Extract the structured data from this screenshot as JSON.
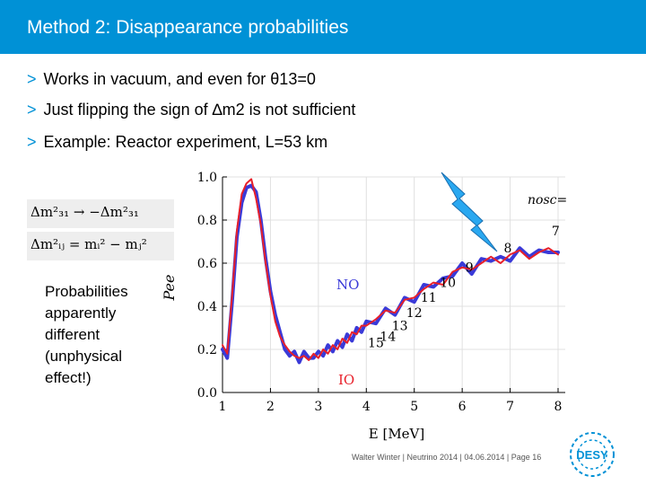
{
  "slide": {
    "title": "Method 2: Disappearance probabilities",
    "bullets": [
      {
        "marker": ">",
        "text": "Works in vacuum, and even for θ13=0"
      },
      {
        "marker": ">",
        "text": "Just flipping the sign of ∆m2 is not sufficient"
      },
      {
        "marker": ">",
        "text": "Example: Reactor experiment, L=53 km"
      }
    ],
    "equations": {
      "line1": "Δm²₃₁ → −Δm²₃₁",
      "line2": "Δm²ᵢⱼ = mᵢ² − mⱼ²"
    },
    "note": [
      "Probabilities",
      "apparently",
      "different",
      "(unphysical",
      "effect!)"
    ],
    "footer": "Walter Winter | Neutrino 2014 | 04.06.2014 | Page 16",
    "logo": "DESY"
  },
  "colors": {
    "accent": "#0091d6",
    "no_curve": "#e8202a",
    "io_curve": "#3a3ad8",
    "bolt": "#2aa8f0"
  },
  "chart_data": {
    "type": "line",
    "xlabel": "E [MeV]",
    "ylabel": "Pee",
    "x_ticks": [
      "1",
      "2",
      "3",
      "4",
      "5",
      "6",
      "7",
      "8"
    ],
    "y_ticks": [
      "0.0",
      "0.2",
      "0.4",
      "0.6",
      "0.8",
      "1.0"
    ],
    "xlim": [
      1,
      8
    ],
    "ylim": [
      0,
      1
    ],
    "series": [
      {
        "name": "NO",
        "color": "#e8202a",
        "x": [
          1.0,
          1.1,
          1.2,
          1.3,
          1.4,
          1.5,
          1.6,
          1.7,
          1.8,
          1.9,
          2.0,
          2.1,
          2.2,
          2.3,
          2.4,
          2.5,
          2.6,
          2.7,
          2.8,
          2.9,
          3.0,
          3.1,
          3.2,
          3.3,
          3.4,
          3.5,
          3.6,
          3.7,
          3.8,
          3.9,
          4.0,
          4.2,
          4.4,
          4.6,
          4.8,
          5.0,
          5.2,
          5.4,
          5.6,
          5.8,
          6.0,
          6.2,
          6.4,
          6.6,
          6.8,
          7.0,
          7.2,
          7.4,
          7.6,
          7.8,
          8.0
        ],
        "y": [
          0.22,
          0.18,
          0.45,
          0.75,
          0.92,
          0.97,
          0.99,
          0.9,
          0.78,
          0.6,
          0.45,
          0.33,
          0.26,
          0.22,
          0.19,
          0.17,
          0.16,
          0.17,
          0.15,
          0.18,
          0.16,
          0.2,
          0.18,
          0.22,
          0.2,
          0.25,
          0.23,
          0.28,
          0.27,
          0.31,
          0.31,
          0.34,
          0.38,
          0.37,
          0.43,
          0.44,
          0.48,
          0.51,
          0.5,
          0.56,
          0.58,
          0.57,
          0.6,
          0.63,
          0.6,
          0.64,
          0.66,
          0.62,
          0.65,
          0.67,
          0.64
        ]
      },
      {
        "name": "IO",
        "color": "#3a3ad8",
        "x": [
          1.0,
          1.1,
          1.2,
          1.3,
          1.4,
          1.5,
          1.6,
          1.7,
          1.8,
          1.9,
          2.0,
          2.1,
          2.2,
          2.3,
          2.4,
          2.5,
          2.6,
          2.7,
          2.8,
          2.9,
          3.0,
          3.1,
          3.2,
          3.3,
          3.4,
          3.5,
          3.6,
          3.7,
          3.8,
          3.9,
          4.0,
          4.2,
          4.4,
          4.6,
          4.8,
          5.0,
          5.2,
          5.4,
          5.6,
          5.8,
          6.0,
          6.2,
          6.4,
          6.6,
          6.8,
          7.0,
          7.2,
          7.4,
          7.6,
          7.8,
          8.0
        ],
        "y": [
          0.2,
          0.16,
          0.42,
          0.72,
          0.88,
          0.95,
          0.96,
          0.93,
          0.8,
          0.62,
          0.47,
          0.36,
          0.28,
          0.2,
          0.17,
          0.19,
          0.14,
          0.19,
          0.16,
          0.16,
          0.19,
          0.17,
          0.22,
          0.19,
          0.24,
          0.21,
          0.27,
          0.24,
          0.3,
          0.28,
          0.33,
          0.32,
          0.39,
          0.36,
          0.44,
          0.42,
          0.5,
          0.49,
          0.53,
          0.54,
          0.6,
          0.55,
          0.62,
          0.61,
          0.63,
          0.61,
          0.67,
          0.63,
          0.66,
          0.65,
          0.65
        ]
      }
    ],
    "annotations": {
      "no_label": "NO",
      "io_label": "IO",
      "nosc_label": "nosc=",
      "peak_numbers": [
        {
          "label": "7",
          "x": 7.95,
          "y": 0.73
        },
        {
          "label": "8",
          "x": 6.95,
          "y": 0.65
        },
        {
          "label": "9",
          "x": 6.15,
          "y": 0.56
        },
        {
          "label": "10",
          "x": 5.7,
          "y": 0.49
        },
        {
          "label": "11",
          "x": 5.3,
          "y": 0.42
        },
        {
          "label": "12",
          "x": 5.0,
          "y": 0.35
        },
        {
          "label": "13",
          "x": 4.7,
          "y": 0.29
        },
        {
          "label": "14",
          "x": 4.45,
          "y": 0.24
        },
        {
          "label": "15",
          "x": 4.2,
          "y": 0.21
        }
      ]
    }
  }
}
